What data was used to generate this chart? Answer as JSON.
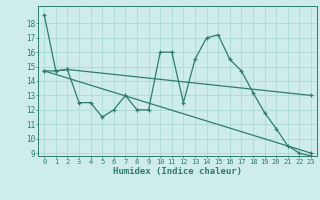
{
  "line1_x": [
    0,
    1,
    2,
    3,
    4,
    5,
    6,
    7,
    8,
    9,
    10,
    11,
    12,
    13,
    14,
    15,
    16,
    17,
    18,
    19,
    20,
    21,
    22,
    23
  ],
  "line1_y": [
    18.6,
    14.7,
    14.8,
    12.5,
    12.5,
    11.5,
    12.0,
    13.0,
    12.0,
    12.0,
    16.0,
    16.0,
    12.5,
    15.5,
    17.0,
    17.2,
    15.5,
    14.7,
    13.2,
    11.8,
    10.7,
    9.5,
    9.0,
    8.8
  ],
  "line2_x": [
    0,
    1,
    2,
    23
  ],
  "line2_y": [
    14.7,
    14.7,
    14.8,
    13.0
  ],
  "line3_x": [
    0,
    23
  ],
  "line3_y": [
    14.7,
    9.0
  ],
  "line_color": "#2e7d6e",
  "bg_color": "#ceecea",
  "grid_color": "#b0ddd9",
  "xlabel": "Humidex (Indice chaleur)",
  "xlim": [
    -0.5,
    23.5
  ],
  "ylim": [
    8.8,
    19.2
  ],
  "yticks": [
    9,
    10,
    11,
    12,
    13,
    14,
    15,
    16,
    17,
    18
  ],
  "xticks": [
    0,
    1,
    2,
    3,
    4,
    5,
    6,
    7,
    8,
    9,
    10,
    11,
    12,
    13,
    14,
    15,
    16,
    17,
    18,
    19,
    20,
    21,
    22,
    23
  ],
  "tick_fontsize": 5.0,
  "xlabel_fontsize": 6.5
}
